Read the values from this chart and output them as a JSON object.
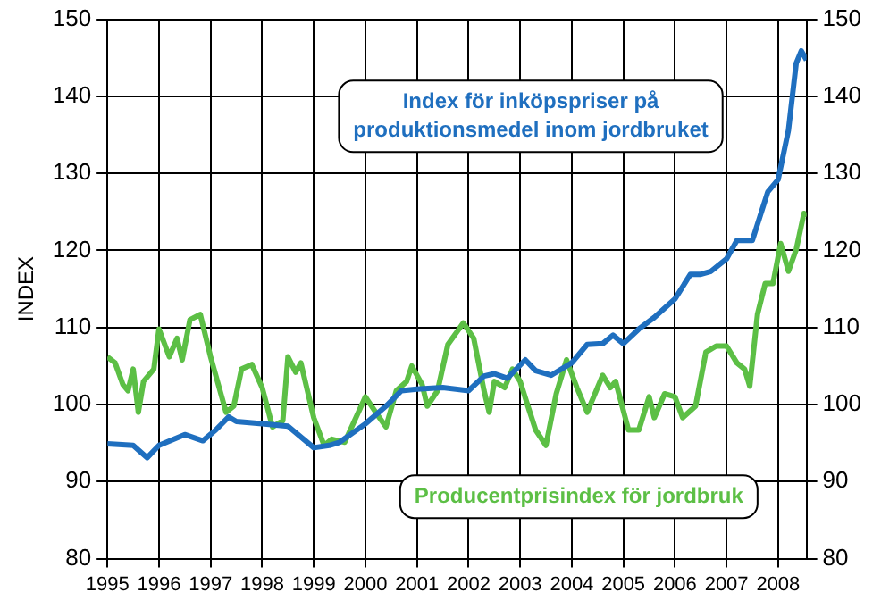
{
  "chart_data": {
    "type": "line",
    "ylabel": "INDEX",
    "xlim": [
      1995,
      2008.55
    ],
    "xticks": [
      1995,
      1996,
      1997,
      1998,
      1999,
      2000,
      2001,
      2002,
      2003,
      2004,
      2005,
      2006,
      2007,
      2008
    ],
    "ylim": [
      80,
      150
    ],
    "yticks": [
      80,
      90,
      100,
      110,
      120,
      130,
      140,
      150
    ],
    "y2lim": [
      80,
      150
    ],
    "y2ticks": [
      80,
      90,
      100,
      110,
      120,
      130,
      140,
      150
    ],
    "grid": true,
    "legend": false,
    "marker": "none",
    "line_style": "solid",
    "series": [
      {
        "name": "Index för inköpspriser på produktionsmedel inom jordbruket",
        "color": "#1f6fbf",
        "x": [
          1995,
          1995.5,
          1995.77,
          1996,
          1996.5,
          1996.85,
          1997.1,
          1997.35,
          1997.5,
          1998,
          1998.5,
          1999,
          1999.3,
          1999.5,
          2000,
          2000.4,
          2000.7,
          2001,
          2001.5,
          2002,
          2002.3,
          2002.5,
          2002.75,
          2003.1,
          2003.3,
          2003.6,
          2004,
          2004.3,
          2004.6,
          2004.8,
          2005,
          2005.3,
          2005.6,
          2006,
          2006.3,
          2006.5,
          2006.7,
          2007,
          2007.2,
          2007.5,
          2007.8,
          2008,
          2008.2,
          2008.35,
          2008.45,
          2008.55
        ],
        "values": [
          94.9,
          94.7,
          93.1,
          94.7,
          96.1,
          95.3,
          96.7,
          98.4,
          97.8,
          97.5,
          97.2,
          94.4,
          94.7,
          95.1,
          97.5,
          99.8,
          101.8,
          102,
          102.2,
          101.8,
          103.7,
          104,
          103.4,
          105.8,
          104.4,
          103.8,
          105.4,
          107.8,
          107.9,
          109,
          107.9,
          109.8,
          111.3,
          113.7,
          116.9,
          116.9,
          117.3,
          118.9,
          121.3,
          121.3,
          127.6,
          129.2,
          135.6,
          144.3,
          145.9,
          144.7
        ]
      },
      {
        "name": "Producentprisindex för jordbruk",
        "color": "#5cbf45",
        "x": [
          1995,
          1995.15,
          1995.3,
          1995.4,
          1995.5,
          1995.6,
          1995.7,
          1995.9,
          1996,
          1996.2,
          1996.35,
          1996.45,
          1996.6,
          1996.8,
          1997,
          1997.2,
          1997.3,
          1997.45,
          1997.6,
          1997.8,
          1998,
          1998.2,
          1998.4,
          1998.5,
          1998.65,
          1998.75,
          1999,
          1999.2,
          1999.35,
          1999.6,
          2000,
          2000.2,
          2000.4,
          2000.6,
          2000.8,
          2000.9,
          2001.1,
          2001.2,
          2001.4,
          2001.6,
          2001.9,
          2002.1,
          2002.3,
          2002.4,
          2002.5,
          2002.7,
          2002.85,
          2003,
          2003.15,
          2003.3,
          2003.5,
          2003.7,
          2003.9,
          2004.1,
          2004.3,
          2004.6,
          2004.75,
          2004.85,
          2005.1,
          2005.3,
          2005.5,
          2005.6,
          2005.8,
          2006,
          2006.15,
          2006.4,
          2006.6,
          2006.8,
          2007,
          2007.2,
          2007.35,
          2007.45,
          2007.6,
          2007.75,
          2007.9,
          2008.05,
          2008.2,
          2008.35,
          2008.5,
          2008.55
        ],
        "values": [
          106.2,
          105.4,
          102.6,
          101.8,
          104.6,
          99,
          103,
          104.6,
          109.8,
          106.2,
          108.6,
          105.8,
          111,
          111.7,
          106.2,
          101.4,
          99,
          99.8,
          104.6,
          105.2,
          102.2,
          97.1,
          97.9,
          106.2,
          104.2,
          105.4,
          98.3,
          94.7,
          95.5,
          95.1,
          101,
          99,
          97.1,
          101.8,
          103,
          105,
          102.6,
          99.8,
          101.8,
          107.8,
          110.6,
          108.6,
          101.8,
          99,
          103,
          102.2,
          104.6,
          103,
          99.8,
          96.7,
          94.7,
          101.4,
          105.8,
          102.2,
          99,
          103.8,
          102.2,
          103,
          96.7,
          96.7,
          101,
          98.3,
          101.4,
          101,
          98.3,
          99.8,
          106.8,
          107.6,
          107.6,
          105.4,
          104.6,
          102.4,
          111.7,
          115.7,
          115.7,
          120.9,
          117.3,
          120.1,
          124.8,
          124.4
        ]
      }
    ]
  }
}
